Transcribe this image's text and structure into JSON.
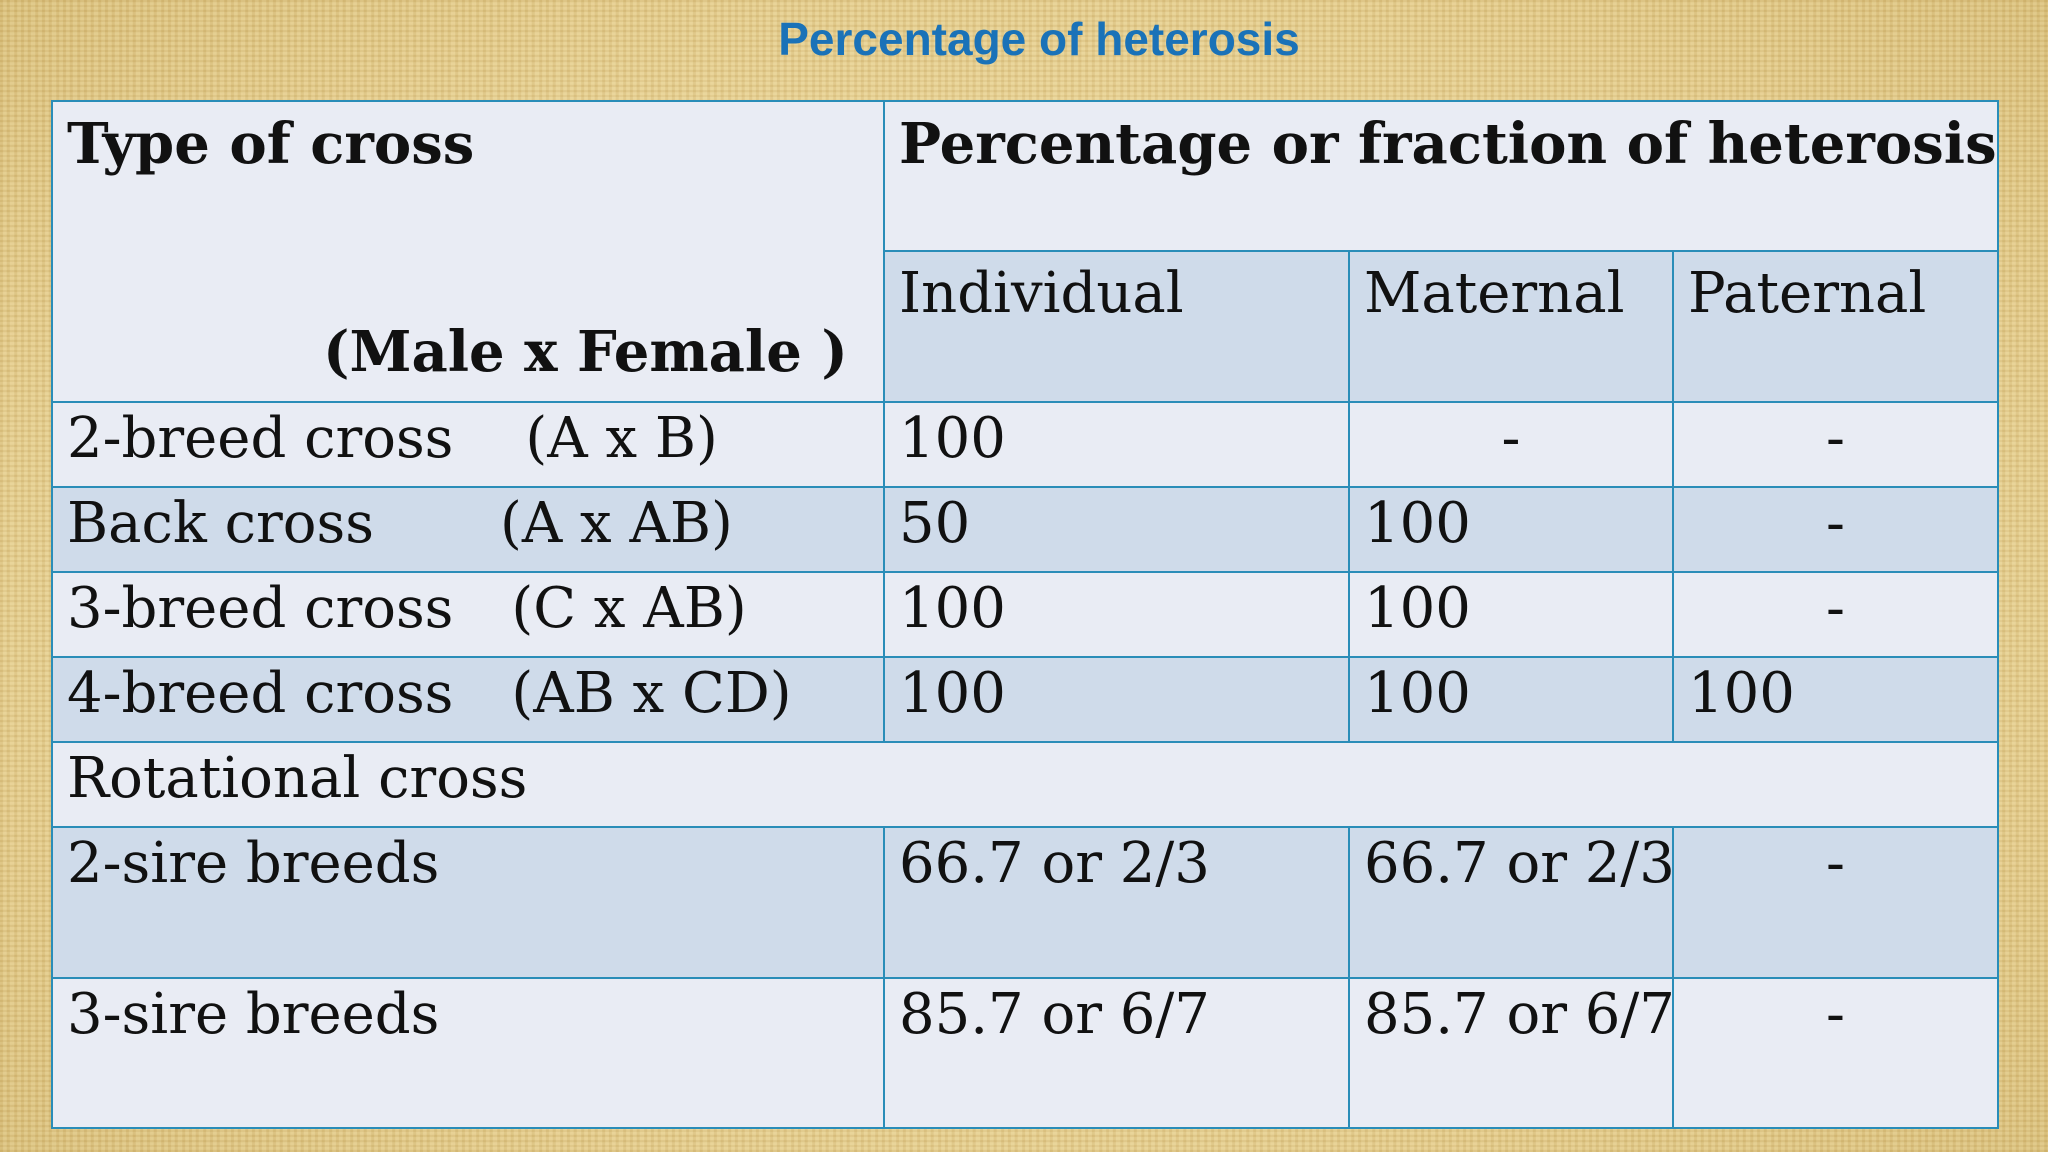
{
  "title": "Percentage of heterosis",
  "header": {
    "type_col_line1": "Type of cross",
    "type_col_line2": "(Male x Female )",
    "pct_col": "Percentage or fraction of heterosis",
    "sub_cols": [
      "Individual",
      "Maternal",
      "Paternal"
    ]
  },
  "rows": [
    {
      "name": "2-breed cross",
      "cross": "(A x B)",
      "individual": "100",
      "maternal": "-",
      "paternal": "-"
    },
    {
      "name": "Back cross",
      "cross": "(A x AB)",
      "individual": "50",
      "maternal": "100",
      "paternal": "-"
    },
    {
      "name": "3-breed cross",
      "cross": "(C x AB)",
      "individual": "100",
      "maternal": "100",
      "paternal": "-"
    },
    {
      "name": "4-breed cross",
      "cross": "(AB x CD)",
      "individual": "100",
      "maternal": "100",
      "paternal": "100"
    }
  ],
  "rotational": {
    "label": "Rotational cross",
    "rows": [
      {
        "name": "2-sire breeds",
        "individual": "66.7 or 2/3",
        "maternal": "66.7 or 2/3",
        "paternal": "-"
      },
      {
        "name": "3-sire breeds",
        "individual": "85.7 or 6/7",
        "maternal": "85.7 or 6/7",
        "paternal": "-"
      }
    ]
  }
}
